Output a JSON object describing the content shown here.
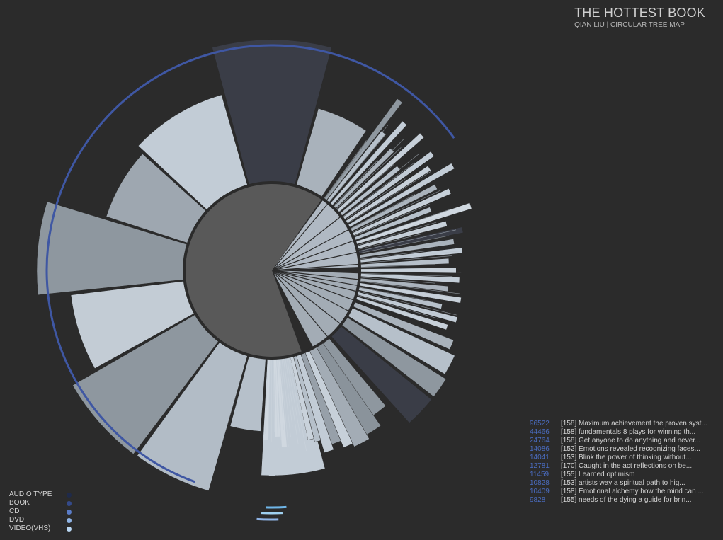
{
  "header": {
    "title": "THE HOTTEST BOOK",
    "subtitle": "QIAN LIU | CIRCULAR TREE MAP"
  },
  "legend": {
    "items": [
      {
        "label": "AUDIO TYPE",
        "color": "#1f2a4a"
      },
      {
        "label": "BOOK",
        "color": "#344a8a"
      },
      {
        "label": "CD",
        "color": "#5a7cc8"
      },
      {
        "label": "DVD",
        "color": "#8fb4e6"
      },
      {
        "label": "VIDEO(VHS)",
        "color": "#b9d6f2"
      }
    ]
  },
  "ranking": [
    {
      "count": "96522",
      "text": "[158]  Maximum achievement the proven syst..."
    },
    {
      "count": "44466",
      "text": "[158]  fundamentals 8 plays for winning th..."
    },
    {
      "count": "24764",
      "text": "[158]  Get anyone to do anything and never..."
    },
    {
      "count": "14086",
      "text": "[152]  Emotions revealed recognizing faces..."
    },
    {
      "count": "14041",
      "text": "[153]  Blink the power of thinking without..."
    },
    {
      "count": "12781",
      "text": "[170]  Caught in the act reflections on be..."
    },
    {
      "count": "11459",
      "text": "[155]  Learned optimism"
    },
    {
      "count": "10828",
      "text": "[153]  artists way a spiritual path to hig..."
    },
    {
      "count": "10409",
      "text": "[158]  Emotional alchemy how the mind can ..."
    },
    {
      "count": "9828",
      "text": "[155]  needs of the dying a guide for brin..."
    }
  ],
  "chart_data": {
    "type": "radial-bar",
    "center_color": "#595959",
    "big_wedges": [
      {
        "start": 345,
        "end": 15,
        "value": 326,
        "color": "#3a3d47"
      },
      {
        "start": 16,
        "end": 34,
        "value": 238,
        "color": "#a9b2bb"
      },
      {
        "start": 313,
        "end": 344,
        "value": 258,
        "color": "#c2ccd6"
      },
      {
        "start": 288,
        "end": 312,
        "value": 246,
        "color": "#9ea7b0"
      },
      {
        "start": 264,
        "end": 287,
        "value": 332,
        "color": "#8e979f"
      },
      {
        "start": 241,
        "end": 263,
        "value": 286,
        "color": "#c3ccd5"
      },
      {
        "start": 217,
        "end": 240,
        "value": 325,
        "color": "#8e979f"
      },
      {
        "start": 196,
        "end": 216,
        "value": 324,
        "color": "#b2bcc6"
      },
      {
        "start": 184,
        "end": 195,
        "value": 228,
        "color": "#b6c0ca"
      },
      {
        "start": 165,
        "end": 183,
        "value": 290,
        "color": "#c2ccd6"
      }
    ],
    "mid_sectors": [
      {
        "start": 36,
        "end": 88,
        "color": "#b0b9c3"
      },
      {
        "start": 92,
        "end": 152,
        "color": "#a3acb5"
      }
    ],
    "lower_bars": [
      {
        "start": 140,
        "end": 146,
        "value": 250,
        "color": "#8e979f"
      },
      {
        "start": 145,
        "end": 150,
        "value": 268,
        "color": "#8a939b"
      },
      {
        "start": 150,
        "end": 155,
        "value": 275,
        "color": "#a3acb5"
      },
      {
        "start": 155,
        "end": 158,
        "value": 270,
        "color": "#c7d0d9"
      },
      {
        "start": 158,
        "end": 161,
        "value": 260,
        "color": "#97a0a9"
      },
      {
        "start": 161,
        "end": 164,
        "value": 268,
        "color": "#c2ccd6"
      },
      {
        "start": 164,
        "end": 166,
        "value": 250,
        "color": "#b6c0ca"
      },
      {
        "start": 166,
        "end": 168,
        "value": 245,
        "color": "#c9d2db"
      },
      {
        "start": 129,
        "end": 138,
        "value": 290,
        "color": "#3a3d47"
      },
      {
        "start": 122,
        "end": 128,
        "value": 290,
        "color": "#8e979f"
      },
      {
        "start": 115,
        "end": 121,
        "value": 285,
        "color": "#b6c0ca"
      },
      {
        "start": 111,
        "end": 114,
        "value": 275,
        "color": "#a9b2bb"
      }
    ],
    "thin_bars": [
      {
        "angle": 37,
        "value": 300,
        "color": "#8e979f"
      },
      {
        "angle": 39,
        "value": 250,
        "color": "#b6c0ca"
      },
      {
        "angle": 42,
        "value": 280,
        "color": "#c2ccd6"
      },
      {
        "angle": 45,
        "value": 240,
        "color": "#a9b2bb"
      },
      {
        "angle": 48,
        "value": 285,
        "color": "#c7d0d9"
      },
      {
        "angle": 51,
        "value": 230,
        "color": "#b6c0ca"
      },
      {
        "angle": 54,
        "value": 280,
        "color": "#c2ccd6"
      },
      {
        "angle": 57,
        "value": 265,
        "color": "#c7d0d9"
      },
      {
        "angle": 60,
        "value": 295,
        "color": "#c2ccd6"
      },
      {
        "angle": 63,
        "value": 260,
        "color": "#a9b2bb"
      },
      {
        "angle": 66,
        "value": 275,
        "color": "#c7d0d9"
      },
      {
        "angle": 69,
        "value": 240,
        "color": "#b6c0ca"
      },
      {
        "angle": 72,
        "value": 295,
        "color": "#d0d8e0"
      },
      {
        "angle": 75,
        "value": 255,
        "color": "#c7d0d9"
      },
      {
        "angle": 78,
        "value": 275,
        "color": "#3a3d47"
      },
      {
        "angle": 81,
        "value": 260,
        "color": "#a9b2bb"
      },
      {
        "angle": 84,
        "value": 270,
        "color": "#c2ccd6"
      },
      {
        "angle": 87,
        "value": 250,
        "color": "#b6c0ca"
      },
      {
        "angle": 90,
        "value": 260,
        "color": "#c7d0d9"
      },
      {
        "angle": 93,
        "value": 265,
        "color": "#c2ccd6"
      },
      {
        "angle": 96,
        "value": 250,
        "color": "#a9b2bb"
      },
      {
        "angle": 99,
        "value": 270,
        "color": "#c7d0d9"
      },
      {
        "angle": 102,
        "value": 245,
        "color": "#b6c0ca"
      },
      {
        "angle": 105,
        "value": 270,
        "color": "#c2ccd6"
      },
      {
        "angle": 108,
        "value": 260,
        "color": "#c7d0d9"
      },
      {
        "angle": 176,
        "value": 250,
        "color": "#d0d8e0"
      },
      {
        "angle": 178,
        "value": 235,
        "color": "#d0d8e0"
      },
      {
        "angle": 180,
        "value": 290,
        "color": "#c2ccd6"
      },
      {
        "angle": 182,
        "value": 240,
        "color": "#d0d8e0"
      }
    ],
    "outer_arc": {
      "start": 200,
      "end": 414,
      "color": "#3f57a3",
      "value": 318
    },
    "bottom_marks": [
      {
        "angle": 179,
        "value": 335,
        "color": "#6fb6e8"
      },
      {
        "angle": 180,
        "value": 343,
        "color": "#9fd0f0"
      },
      {
        "angle": 181,
        "value": 352,
        "color": "#8fb4e6"
      }
    ]
  }
}
